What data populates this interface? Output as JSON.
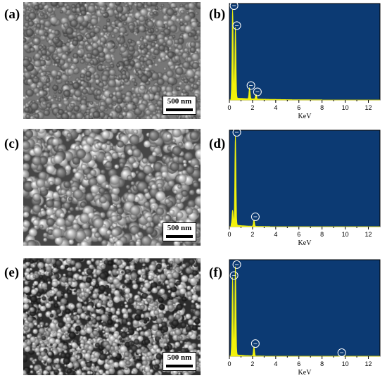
{
  "panels": [
    {
      "label": "(a)",
      "kind": "sem",
      "scale_bar": "500 nm",
      "brightness": "medium"
    },
    {
      "label": "(b)",
      "kind": "eds"
    },
    {
      "label": "(c)",
      "kind": "sem",
      "scale_bar": "500 nm",
      "brightness": "bright-grains"
    },
    {
      "label": "(d)",
      "kind": "eds"
    },
    {
      "label": "(e)",
      "kind": "sem",
      "scale_bar": "500 nm",
      "brightness": "high-contrast"
    },
    {
      "label": "(f)",
      "kind": "eds"
    }
  ],
  "colors": {
    "eds_background": "#0c3a73",
    "eds_spectrum": "#f2f20a",
    "peak_marker": "#ffffff",
    "axis": "#000000"
  },
  "chart_data": [
    {
      "type": "area",
      "panel": "(b)",
      "xlabel": "KeV",
      "xlim": [
        0,
        13
      ],
      "x_ticks": [
        0,
        2,
        4,
        6,
        8,
        10,
        12
      ],
      "ylim": [
        0,
        1
      ],
      "peaks": [
        {
          "x": 0.28,
          "y": 1.0,
          "marker": true
        },
        {
          "x": 0.52,
          "y": 0.78,
          "marker": true
        },
        {
          "x": 1.74,
          "y": 0.12,
          "marker": true
        },
        {
          "x": 2.3,
          "y": 0.05,
          "marker": true
        }
      ],
      "tail_end": 8.0
    },
    {
      "type": "area",
      "panel": "(d)",
      "xlabel": "KeV",
      "xlim": [
        0,
        13
      ],
      "x_ticks": [
        0,
        2,
        4,
        6,
        8,
        10,
        12
      ],
      "ylim": [
        0,
        1
      ],
      "peaks": [
        {
          "x": 0.28,
          "y": 0.16,
          "marker": false
        },
        {
          "x": 0.52,
          "y": 1.0,
          "marker": true
        },
        {
          "x": 2.12,
          "y": 0.07,
          "marker": true
        }
      ],
      "tail_end": 3.5
    },
    {
      "type": "area",
      "panel": "(f)",
      "xlabel": "KeV",
      "xlim": [
        0,
        13
      ],
      "x_ticks": [
        0,
        2,
        4,
        6,
        8,
        10,
        12
      ],
      "ylim": [
        0,
        1
      ],
      "peaks": [
        {
          "x": 0.28,
          "y": 0.85,
          "marker": true
        },
        {
          "x": 0.52,
          "y": 0.97,
          "marker": true
        },
        {
          "x": 2.12,
          "y": 0.1,
          "marker": true
        },
        {
          "x": 9.7,
          "y": 0.0,
          "marker": true
        }
      ],
      "tail_end": 3.0
    }
  ]
}
